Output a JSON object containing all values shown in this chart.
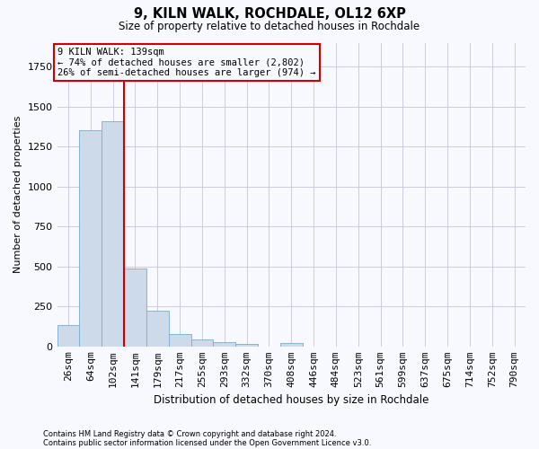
{
  "title": "9, KILN WALK, ROCHDALE, OL12 6XP",
  "subtitle": "Size of property relative to detached houses in Rochdale",
  "xlabel": "Distribution of detached houses by size in Rochdale",
  "ylabel": "Number of detached properties",
  "footnote1": "Contains HM Land Registry data © Crown copyright and database right 2024.",
  "footnote2": "Contains public sector information licensed under the Open Government Licence v3.0.",
  "bar_color": "#ccdaea",
  "bar_edge_color": "#7aaacf",
  "grid_color": "#ccccdd",
  "annotation_box_color": "#cc0000",
  "vline_color": "#cc0000",
  "annotation_text": "9 KILN WALK: 139sqm\n← 74% of detached houses are smaller (2,802)\n26% of semi-detached houses are larger (974) →",
  "categories": [
    "26sqm",
    "64sqm",
    "102sqm",
    "141sqm",
    "179sqm",
    "217sqm",
    "255sqm",
    "293sqm",
    "332sqm",
    "370sqm",
    "408sqm",
    "446sqm",
    "484sqm",
    "523sqm",
    "561sqm",
    "599sqm",
    "637sqm",
    "675sqm",
    "714sqm",
    "752sqm",
    "790sqm"
  ],
  "values": [
    135,
    1350,
    1410,
    490,
    225,
    75,
    45,
    28,
    15,
    0,
    20,
    0,
    0,
    0,
    0,
    0,
    0,
    0,
    0,
    0,
    0
  ],
  "ylim": [
    0,
    1900
  ],
  "vline_position": 2.5,
  "background_color": "#f8f8ff"
}
